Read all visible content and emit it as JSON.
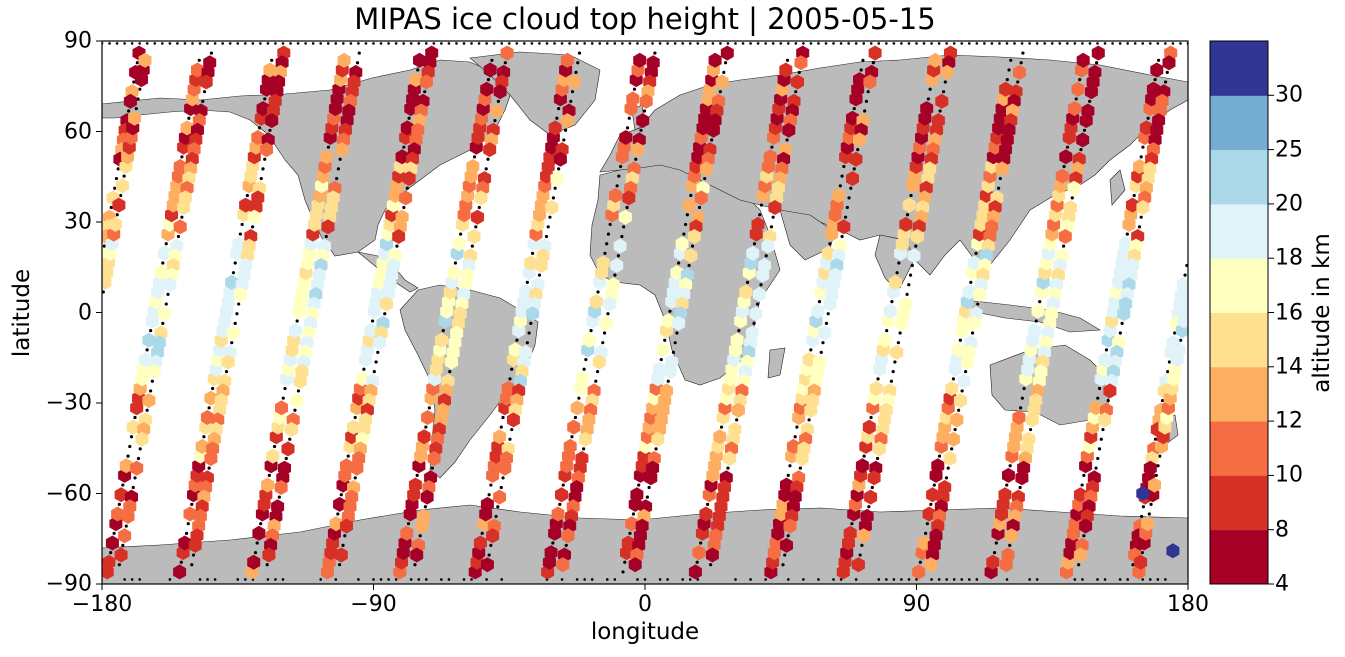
{
  "title": "MIPAS ice cloud top height | 2005-05-15",
  "chart_data": {
    "type": "map",
    "xlabel": "longitude",
    "ylabel": "latitude",
    "xlim": [
      -180,
      180
    ],
    "ylim": [
      -90,
      90
    ],
    "xticks": [
      -180,
      -90,
      0,
      90,
      180
    ],
    "xtick_labels": [
      "−180",
      "−90",
      "0",
      "90",
      "180"
    ],
    "yticks": [
      90,
      60,
      30,
      0,
      -30,
      -60,
      -90
    ],
    "ytick_labels": [
      "90",
      "60",
      "30",
      "0",
      "−30",
      "−60",
      "−90"
    ],
    "land_color": "#bbbbbb",
    "colorbar": {
      "label": "altitude in km",
      "bounds": [
        4,
        8,
        10,
        12,
        14,
        16,
        18,
        20,
        25,
        30
      ],
      "tick_labels": [
        "4",
        "8",
        "10",
        "12",
        "14",
        "16",
        "18",
        "20",
        "25",
        "30"
      ],
      "colors": [
        "#a50026",
        "#d73027",
        "#f46d43",
        "#fdae61",
        "#fee090",
        "#ffffbf",
        "#e0f3f8",
        "#abd9e9",
        "#74add1",
        "#313695"
      ]
    },
    "orbits": [
      {
        "lon_start": -179,
        "direction": "ascending"
      },
      {
        "lon_start": -155,
        "direction": "ascending"
      },
      {
        "lon_start": -131,
        "direction": "ascending"
      },
      {
        "lon_start": -106,
        "direction": "ascending"
      },
      {
        "lon_start": -82,
        "direction": "ascending"
      },
      {
        "lon_start": -57,
        "direction": "ascending"
      },
      {
        "lon_start": -33,
        "direction": "ascending"
      },
      {
        "lon_start": -8,
        "direction": "ascending"
      },
      {
        "lon_start": 16,
        "direction": "ascending"
      },
      {
        "lon_start": 41,
        "direction": "ascending"
      },
      {
        "lon_start": 65,
        "direction": "ascending"
      },
      {
        "lon_start": 90,
        "direction": "ascending"
      },
      {
        "lon_start": 114,
        "direction": "ascending"
      },
      {
        "lon_start": 139,
        "direction": "ascending"
      },
      {
        "lon_start": 163,
        "direction": "ascending"
      }
    ]
  }
}
